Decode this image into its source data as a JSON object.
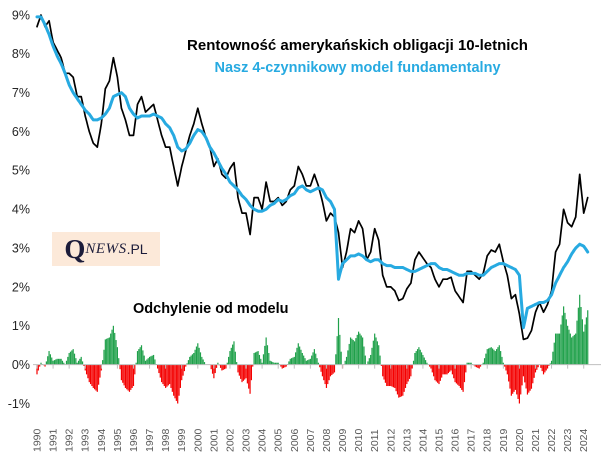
{
  "header": {
    "title": "Rentowność amerykańskich obligacji 10-letnich",
    "subtitle": "Nasz 4-czynnikowy model fundamentalny"
  },
  "deviation_label": "Odchylenie od modelu",
  "watermark": {
    "q": "Q",
    "news": "NEWS",
    "pl": ".PL"
  },
  "colors": {
    "yield_line": "#000000",
    "model_line": "#27AAE1",
    "positive_bar": "#1FA04A",
    "negative_bar": "#F40000",
    "zero_axis": "#BFBFBF",
    "x_tick_text": "#595959",
    "y_tick_text": "#262626",
    "watermark_bg": "#FCE9D9",
    "watermark_text": "#1C1C3A"
  },
  "chart_data": {
    "type": "line",
    "title": "Rentowność amerykańskich obligacji 10-letnich",
    "subtitle": "Nasz 4-czynnikowy model fundamentalny",
    "grid": false,
    "legend_position": "inline-colored-titles",
    "ylim": [
      -1,
      9
    ],
    "y_ticks": [
      "9%",
      "8%",
      "7%",
      "6%",
      "5%",
      "4%",
      "3%",
      "2%",
      "1%",
      "0%",
      "-1%"
    ],
    "y_tick_values": [
      9,
      8,
      7,
      6,
      5,
      4,
      3,
      2,
      1,
      0,
      -1
    ],
    "x_tick_years": [
      1990,
      1991,
      1992,
      1993,
      1994,
      1995,
      1996,
      1997,
      1998,
      1999,
      2000,
      2001,
      2002,
      2003,
      2004,
      2005,
      2006,
      2007,
      2008,
      2009,
      2010,
      2011,
      2012,
      2013,
      2014,
      2015,
      2016,
      2017,
      2018,
      2019,
      2020,
      2021,
      2022,
      2023,
      2024
    ],
    "x_start": 1990.0,
    "x_step": 0.25,
    "series": [
      {
        "name": "Rentowność amerykańskich obligacji 10-letnich",
        "color": "#000000",
        "values": [
          8.7,
          9.0,
          8.7,
          8.85,
          8.3,
          8.1,
          7.9,
          7.5,
          7.5,
          7.4,
          6.9,
          6.9,
          6.4,
          6.0,
          5.7,
          5.6,
          6.2,
          7.1,
          7.3,
          7.9,
          7.4,
          6.6,
          6.3,
          5.9,
          5.9,
          6.7,
          6.9,
          6.5,
          6.6,
          6.7,
          6.3,
          5.9,
          5.6,
          5.6,
          5.1,
          4.6,
          5.1,
          5.5,
          5.9,
          6.2,
          6.6,
          6.2,
          5.85,
          5.6,
          5.1,
          5.3,
          4.9,
          4.8,
          5.05,
          5.2,
          4.3,
          3.9,
          3.9,
          3.35,
          4.3,
          4.3,
          4.0,
          4.7,
          4.2,
          4.2,
          4.3,
          4.1,
          4.2,
          4.5,
          4.6,
          5.1,
          4.9,
          4.6,
          4.6,
          4.9,
          4.6,
          4.2,
          3.7,
          3.9,
          3.8,
          3.4,
          2.5,
          2.9,
          3.5,
          3.4,
          3.7,
          3.5,
          2.7,
          2.9,
          3.5,
          3.2,
          2.3,
          2.0,
          2.0,
          1.9,
          1.65,
          1.7,
          1.95,
          2.1,
          2.7,
          2.9,
          2.75,
          2.6,
          2.5,
          2.2,
          2.0,
          2.2,
          2.2,
          2.25,
          1.9,
          1.75,
          1.6,
          2.4,
          2.4,
          2.3,
          2.2,
          2.35,
          2.8,
          2.95,
          2.9,
          3.1,
          2.65,
          2.3,
          1.7,
          1.8,
          1.3,
          0.65,
          0.68,
          0.88,
          1.35,
          1.6,
          1.35,
          1.55,
          1.9,
          2.9,
          3.1,
          4.0,
          3.65,
          3.55,
          3.8,
          4.9,
          3.9,
          4.3
        ]
      },
      {
        "name": "Nasz 4-czynnikowy model fundamentalny",
        "color": "#27AAE1",
        "values": [
          8.95,
          8.95,
          8.75,
          8.5,
          8.2,
          7.95,
          7.75,
          7.5,
          7.2,
          7.0,
          6.85,
          6.7,
          6.55,
          6.45,
          6.3,
          6.3,
          6.35,
          6.45,
          6.6,
          6.9,
          6.95,
          7.0,
          6.9,
          6.6,
          6.45,
          6.35,
          6.4,
          6.4,
          6.4,
          6.45,
          6.4,
          6.35,
          6.2,
          6.1,
          5.9,
          5.6,
          5.5,
          5.55,
          5.7,
          5.9,
          6.05,
          6.0,
          5.85,
          5.6,
          5.45,
          5.25,
          5.05,
          4.9,
          4.7,
          4.6,
          4.5,
          4.35,
          4.25,
          4.1,
          4.0,
          3.95,
          3.95,
          4.0,
          4.1,
          4.15,
          4.25,
          4.2,
          4.25,
          4.35,
          4.4,
          4.55,
          4.6,
          4.5,
          4.45,
          4.5,
          4.55,
          4.5,
          4.3,
          4.2,
          4.0,
          2.2,
          2.6,
          2.7,
          2.8,
          2.8,
          2.85,
          2.8,
          2.7,
          2.65,
          2.7,
          2.7,
          2.6,
          2.55,
          2.55,
          2.5,
          2.5,
          2.5,
          2.45,
          2.4,
          2.4,
          2.45,
          2.5,
          2.55,
          2.6,
          2.6,
          2.5,
          2.45,
          2.45,
          2.4,
          2.35,
          2.3,
          2.3,
          2.35,
          2.35,
          2.35,
          2.3,
          2.3,
          2.4,
          2.5,
          2.55,
          2.6,
          2.6,
          2.55,
          2.5,
          2.45,
          2.3,
          0.95,
          1.45,
          1.5,
          1.55,
          1.6,
          1.6,
          1.65,
          1.8,
          2.1,
          2.3,
          2.5,
          2.65,
          2.85,
          3.0,
          3.1,
          3.05,
          2.9
        ]
      }
    ],
    "bars": {
      "name": "Odchylenie od modelu",
      "formula": "series[0].values - series[1].values",
      "positive_color": "#1FA04A",
      "negative_color": "#F40000",
      "approx_range": [
        -1.0,
        2.0
      ]
    }
  }
}
